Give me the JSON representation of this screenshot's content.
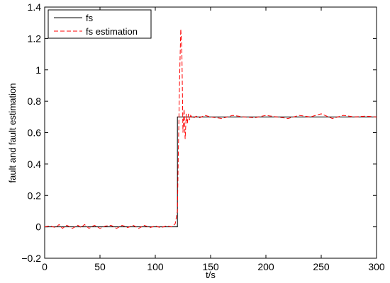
{
  "chart_data": {
    "type": "line",
    "title": "",
    "xlabel": "t/s",
    "ylabel": "fault and fault estimation",
    "xlim": [
      0,
      300
    ],
    "ylim": [
      -0.2,
      1.4
    ],
    "xticks": [
      0,
      50,
      100,
      150,
      200,
      250,
      300
    ],
    "yticks": [
      -0.2,
      0,
      0.2,
      0.4,
      0.6,
      0.8,
      1,
      1.2,
      1.4
    ],
    "xtick_labels": [
      "0",
      "50",
      "100",
      "150",
      "200",
      "250",
      "300"
    ],
    "ytick_labels": [
      "−0.2",
      "0",
      "0.2",
      "0.4",
      "0.6",
      "0.8",
      "1",
      "1.2",
      "1.4"
    ],
    "grid": false,
    "legend_position": "top-left",
    "series": [
      {
        "name": "fs",
        "color": "#000000",
        "style": "solid",
        "x": [
          0,
          120,
          120,
          300
        ],
        "y": [
          0,
          0,
          0.7,
          0.7
        ]
      },
      {
        "name": "fs estimation",
        "color": "#ff0000",
        "style": "dashed",
        "x": [
          0,
          5,
          10,
          13,
          16,
          20,
          25,
          30,
          33,
          36,
          40,
          45,
          50,
          55,
          60,
          65,
          70,
          75,
          80,
          85,
          90,
          95,
          100,
          105,
          110,
          115,
          118,
          120,
          121,
          122,
          123,
          124,
          125,
          126,
          127,
          128,
          129,
          130,
          131,
          132,
          134,
          137,
          140,
          145,
          150,
          160,
          170,
          180,
          190,
          200,
          210,
          220,
          230,
          240,
          250,
          260,
          270,
          280,
          290,
          300
        ],
        "y": [
          0,
          0.005,
          -0.005,
          0.015,
          -0.01,
          0.01,
          -0.01,
          0.01,
          -0.005,
          0.015,
          -0.01,
          0.01,
          -0.01,
          0.005,
          0.01,
          -0.01,
          0.01,
          -0.005,
          0.01,
          -0.01,
          0.01,
          -0.005,
          0.005,
          -0.005,
          0.005,
          0,
          0.02,
          0.1,
          0.55,
          0.95,
          1.26,
          1.15,
          0.6,
          0.75,
          0.56,
          0.72,
          0.66,
          0.72,
          0.68,
          0.71,
          0.69,
          0.705,
          0.695,
          0.71,
          0.7,
          0.69,
          0.71,
          0.7,
          0.695,
          0.71,
          0.7,
          0.69,
          0.71,
          0.7,
          0.72,
          0.69,
          0.71,
          0.7,
          0.705,
          0.7
        ]
      }
    ]
  }
}
